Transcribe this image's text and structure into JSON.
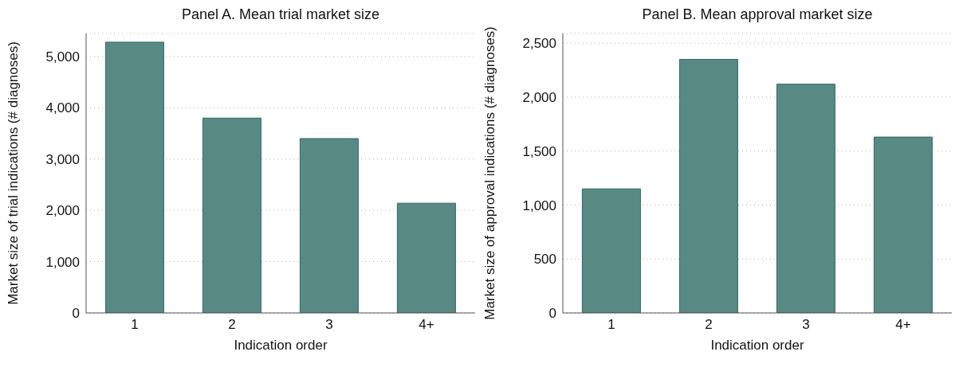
{
  "chart_data": [
    {
      "type": "bar",
      "title": "Panel A. Mean trial market size",
      "xlabel": "Indication order",
      "ylabel": "Market size of trial indications (# diagnoses)",
      "categories": [
        "1",
        "2",
        "3",
        "4+"
      ],
      "values": [
        5280,
        3800,
        3400,
        2140
      ],
      "color": "#588a83",
      "ylim": [
        0,
        5450
      ],
      "yticks": [
        {
          "value": 0,
          "label": "0"
        },
        {
          "value": 1000,
          "label": "1,000"
        },
        {
          "value": 2000,
          "label": "2,000"
        },
        {
          "value": 3000,
          "label": "3,000"
        },
        {
          "value": 4000,
          "label": "4,000"
        },
        {
          "value": 5000,
          "label": "5,000"
        }
      ],
      "grid": "y"
    },
    {
      "type": "bar",
      "title": "Panel B. Mean approval market size",
      "xlabel": "Indication order",
      "ylabel": "Market size of approval indications (# diagnoses)",
      "categories": [
        "1",
        "2",
        "3",
        "4+"
      ],
      "values": [
        1150,
        2350,
        2120,
        1630
      ],
      "color": "#588a83",
      "ylim": [
        0,
        2590
      ],
      "yticks": [
        {
          "value": 0,
          "label": "0"
        },
        {
          "value": 500,
          "label": "500"
        },
        {
          "value": 1000,
          "label": "1,000"
        },
        {
          "value": 1500,
          "label": "1,500"
        },
        {
          "value": 2000,
          "label": "2,000"
        },
        {
          "value": 2500,
          "label": "2,500"
        }
      ],
      "grid": "y"
    }
  ]
}
